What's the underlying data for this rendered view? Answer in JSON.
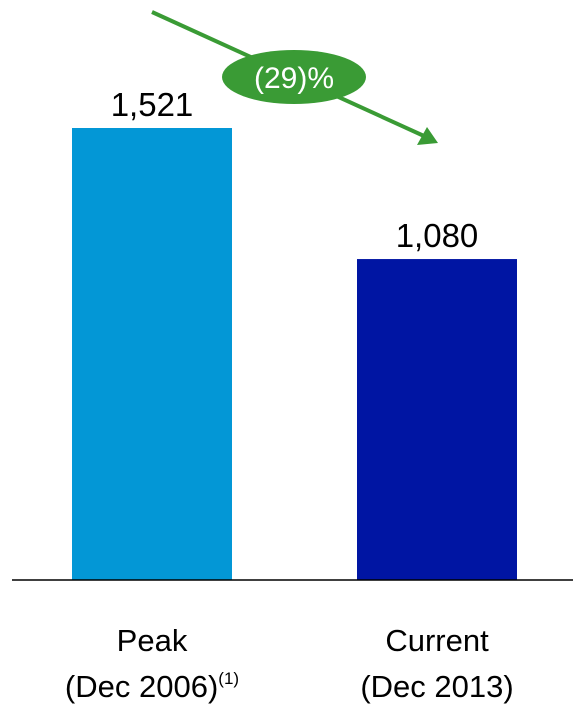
{
  "chart_data": {
    "type": "bar",
    "categories": [
      "Peak",
      "Current"
    ],
    "category_sublabels": [
      "(Dec 2006)",
      "(Dec 2013)"
    ],
    "category_footnote_marks": [
      "(1)",
      ""
    ],
    "values": [
      1521,
      1080
    ],
    "value_labels": [
      "1,521",
      "1,080"
    ],
    "bar_colors": [
      "#0397d6",
      "#0015a3"
    ],
    "ylim": [
      0,
      1521
    ],
    "grid": false,
    "change_annotation": {
      "text": "(29)%",
      "color": "#3a9b35",
      "arrow_direction": "down-right"
    }
  }
}
